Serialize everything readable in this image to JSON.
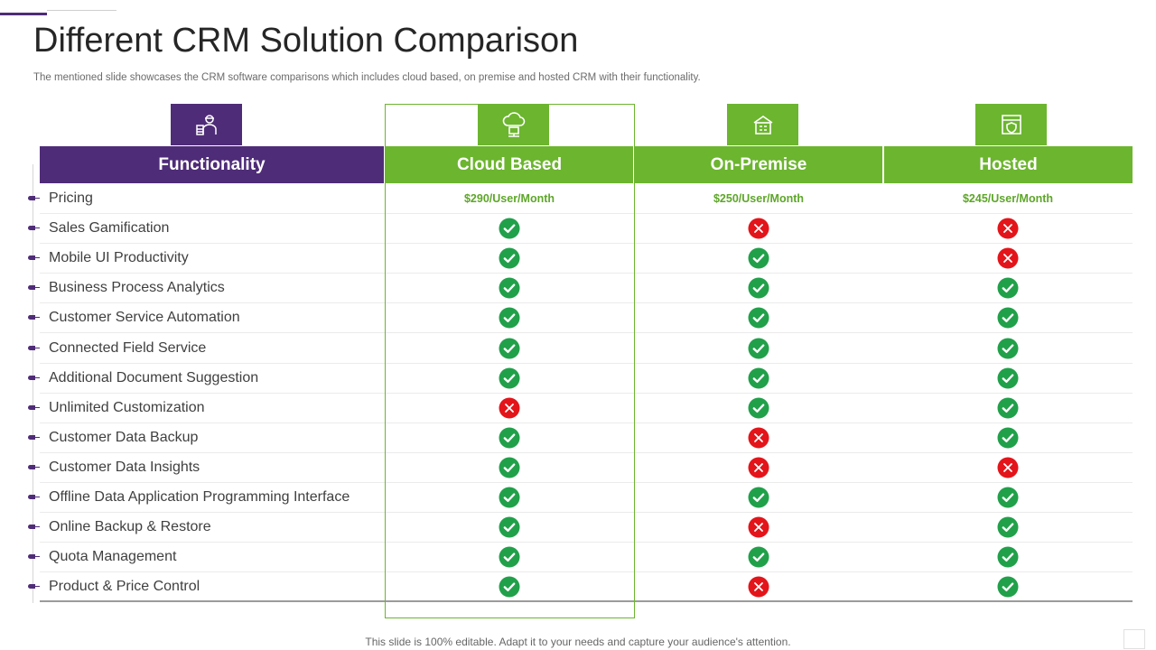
{
  "slide": {
    "title": "Different CRM Solution Comparison",
    "subtitle": "The mentioned slide showcases the CRM software comparisons which includes cloud based, on premise and hosted CRM with their functionality.",
    "footer": "This slide is 100% editable. Adapt it to your needs and capture your audience's attention."
  },
  "colors": {
    "purple": "#4f2c78",
    "green": "#6cb52f",
    "check": "#21a04a",
    "cross": "#e3151a"
  },
  "icons": {
    "functionality": "engineer-icon",
    "cloud": "cloud-server-icon",
    "on_premise": "building-icon",
    "hosted": "shield-browser-icon"
  },
  "table": {
    "headers": [
      "Functionality",
      "Cloud Based",
      "On-Premise",
      "Hosted"
    ],
    "pricing_label": "Pricing",
    "prices": [
      "$290/User/Month",
      "$250/User/Month",
      "$245/User/Month"
    ],
    "features": [
      {
        "name": "Sales Gamification",
        "cloud": "yes",
        "on_premise": "no",
        "hosted": "no"
      },
      {
        "name": "Mobile UI Productivity",
        "cloud": "yes",
        "on_premise": "yes",
        "hosted": "no"
      },
      {
        "name": "Business Process Analytics",
        "cloud": "yes",
        "on_premise": "yes",
        "hosted": "yes"
      },
      {
        "name": "Customer Service Automation",
        "cloud": "yes",
        "on_premise": "yes",
        "hosted": "yes"
      },
      {
        "name": "Connected Field Service",
        "cloud": "yes",
        "on_premise": "yes",
        "hosted": "yes"
      },
      {
        "name": "Additional Document Suggestion",
        "cloud": "yes",
        "on_premise": "yes",
        "hosted": "yes"
      },
      {
        "name": "Unlimited Customization",
        "cloud": "no",
        "on_premise": "yes",
        "hosted": "yes"
      },
      {
        "name": "Customer Data Backup",
        "cloud": "yes",
        "on_premise": "no",
        "hosted": "yes"
      },
      {
        "name": "Customer Data Insights",
        "cloud": "yes",
        "on_premise": "no",
        "hosted": "no"
      },
      {
        "name": "Offline Data Application Programming Interface",
        "cloud": "yes",
        "on_premise": "yes",
        "hosted": "yes"
      },
      {
        "name": "Online Backup & Restore",
        "cloud": "yes",
        "on_premise": "no",
        "hosted": "yes"
      },
      {
        "name": "Quota Management",
        "cloud": "yes",
        "on_premise": "yes",
        "hosted": "yes"
      },
      {
        "name": "Product & Price Control",
        "cloud": "yes",
        "on_premise": "no",
        "hosted": "yes"
      }
    ]
  }
}
